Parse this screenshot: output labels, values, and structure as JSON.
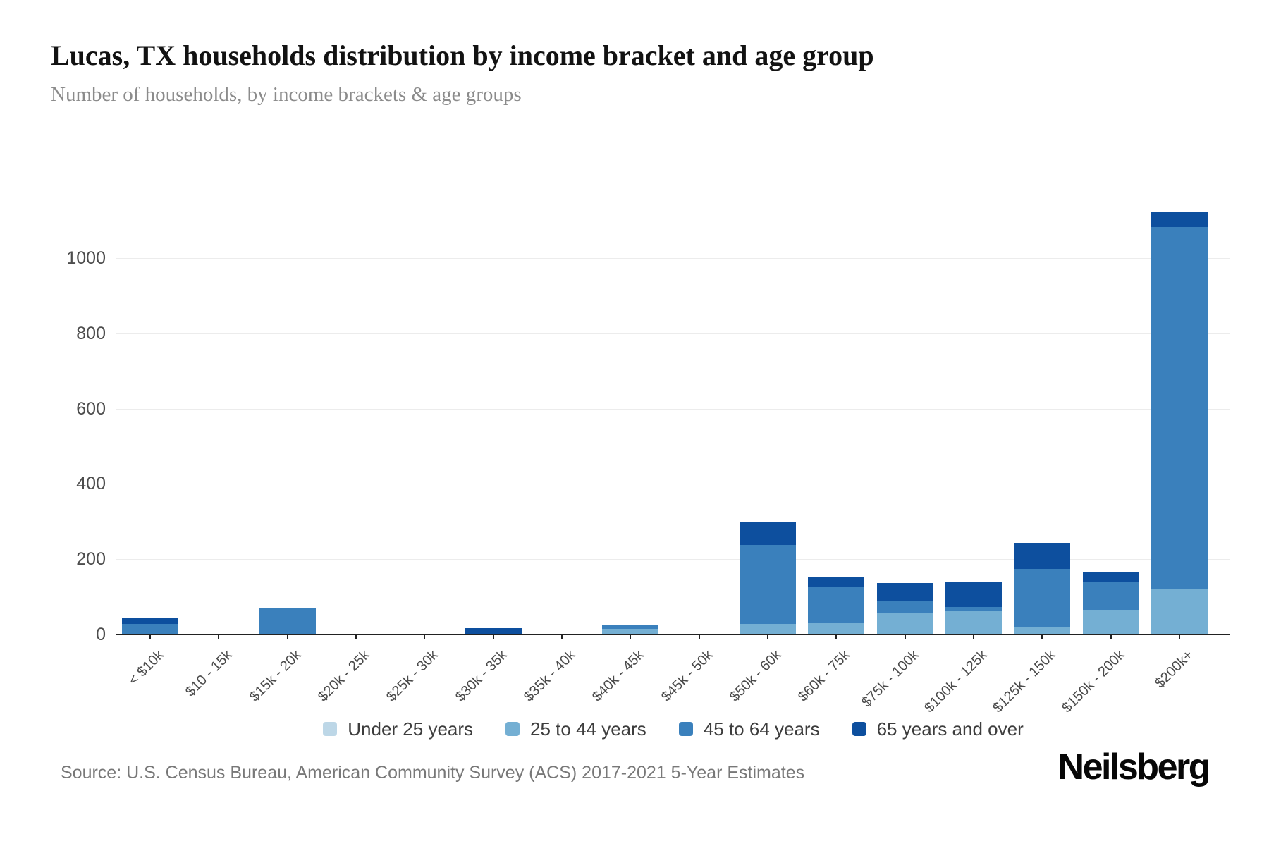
{
  "page": {
    "title": "Lucas, TX households distribution by income bracket and age group",
    "subtitle": "Number of households, by income brackets & age groups",
    "source": "Source: U.S. Census Bureau, American Community Survey (ACS) 2017-2021 5-Year Estimates",
    "brand": "Neilsberg"
  },
  "colors": {
    "under_25_years": "#bdd7e7",
    "25_to_44_years": "#74afd3",
    "45_to_64_years": "#3a80bc",
    "65_years_and_over": "#0d4f9e",
    "axis_line": "#222222",
    "gridline": "#ececec",
    "tick_label": "#4d4d4d"
  },
  "chart_data": {
    "type": "bar",
    "stacked": true,
    "title": "Lucas, TX households distribution by income bracket and age group",
    "subtitle": "Number of households, by income brackets & age groups",
    "xlabel": "",
    "ylabel": "Number of households",
    "ylim": [
      0,
      1200
    ],
    "yticks": [
      0,
      200,
      400,
      600,
      800,
      1000
    ],
    "grid": "horizontal",
    "legend_position": "bottom",
    "categories": [
      "< $10k",
      "$10 - 15k",
      "$15k - 20k",
      "$20k - 25k",
      "$25k - 30k",
      "$30k - 35k",
      "$35k - 40k",
      "$40k - 45k",
      "$45k - 50k",
      "$50k - 60k",
      "$60k - 75k",
      "$75k - 100k",
      "$100k - 125k",
      "$125k - 150k",
      "$150k - 200k",
      "$200k+"
    ],
    "series": [
      {
        "name": "Under 25 years",
        "color": "#bdd7e7",
        "values": [
          0,
          0,
          0,
          0,
          0,
          0,
          0,
          0,
          0,
          0,
          0,
          0,
          0,
          0,
          0,
          0
        ]
      },
      {
        "name": "25 to 44 years",
        "color": "#74afd3",
        "values": [
          0,
          0,
          0,
          0,
          0,
          0,
          0,
          15,
          0,
          29,
          30,
          58,
          62,
          20,
          65,
          122
        ]
      },
      {
        "name": "45 to 64 years",
        "color": "#3a80bc",
        "values": [
          29,
          0,
          71,
          0,
          0,
          0,
          0,
          10,
          0,
          209,
          95,
          31,
          11,
          155,
          75,
          961
        ]
      },
      {
        "name": "65 years and over",
        "color": "#0d4f9e",
        "values": [
          14,
          0,
          0,
          0,
          0,
          16,
          0,
          0,
          0,
          62,
          29,
          47,
          68,
          68,
          27,
          41
        ]
      }
    ],
    "totals": [
      43,
      0,
      71,
      0,
      0,
      16,
      0,
      25,
      0,
      300,
      154,
      136,
      141,
      243,
      167,
      1124
    ]
  }
}
